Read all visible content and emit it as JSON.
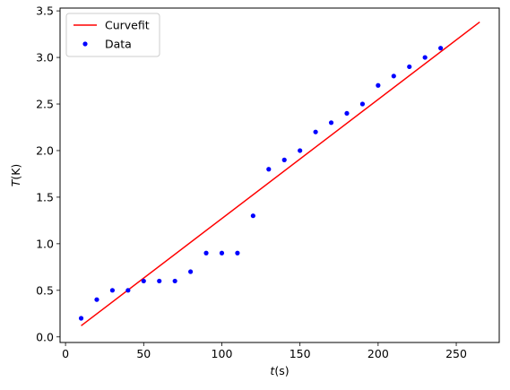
{
  "chart_data": {
    "type": "scatter",
    "title": "",
    "xlabel_italic": "t",
    "xlabel_unit": "(s)",
    "ylabel_italic": "T",
    "ylabel_unit": "(K)",
    "xlim": [
      -3.5,
      277.5
    ],
    "ylim": [
      -0.06,
      3.53
    ],
    "xticks": [
      0,
      50,
      100,
      150,
      200,
      250
    ],
    "yticks": [
      0.0,
      0.5,
      1.0,
      1.5,
      2.0,
      2.5,
      3.0,
      3.5
    ],
    "ytick_labels": [
      "0.0",
      "0.5",
      "1.0",
      "1.5",
      "2.0",
      "2.5",
      "3.0",
      "3.5"
    ],
    "legend_position": "upper-left",
    "series": [
      {
        "name": "Curvefit",
        "kind": "line",
        "color": "#ff0000",
        "x": [
          10,
          265
        ],
        "y": [
          0.12,
          3.38
        ]
      },
      {
        "name": "Data",
        "kind": "scatter",
        "color": "#0000ff",
        "x": [
          10,
          20,
          30,
          40,
          50,
          60,
          70,
          80,
          90,
          100,
          110,
          120,
          130,
          140,
          150,
          160,
          170,
          180,
          190,
          200,
          210,
          220,
          230,
          240
        ],
        "y": [
          0.2,
          0.4,
          0.5,
          0.5,
          0.6,
          0.6,
          0.6,
          0.7,
          0.9,
          0.9,
          0.9,
          1.3,
          1.8,
          1.9,
          2.0,
          2.2,
          2.3,
          2.4,
          2.5,
          2.7,
          2.8,
          2.9,
          3.0,
          3.1
        ]
      }
    ]
  }
}
